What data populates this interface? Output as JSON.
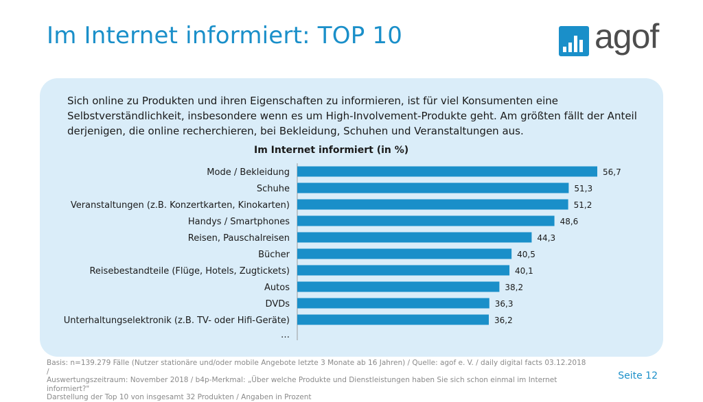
{
  "title": "Im Internet informiert: TOP 10",
  "logo": {
    "text": "agof",
    "icon": "bar-chart-logo-icon",
    "brand_color": "#1a8fc9"
  },
  "intro_text": "Sich online zu Produkten und ihren Eigenschaften zu informieren, ist für viel Konsumenten eine Selbstverständlichkeit, insbesondere wenn es um High-Involvement-Produkte geht. Am größten fällt der Anteil derjenigen, die online recherchieren, bei Bekleidung, Schuhen und Veranstaltungen aus.",
  "chart_data": {
    "type": "bar",
    "orientation": "horizontal",
    "title": "Im Internet informiert (in %)",
    "categories": [
      "Mode / Bekleidung",
      "Schuhe",
      "Veranstaltungen (z.B. Konzertkarten, Kinokarten)",
      "Handys / Smartphones",
      "Reisen, Pauschalreisen",
      "Bücher",
      "Reisebestandteile (Flüge, Hotels, Zugtickets)",
      "Autos",
      "DVDs",
      "Unterhaltungselektronik (z.B. TV- oder Hifi-Geräte)"
    ],
    "values": [
      56.7,
      51.3,
      51.2,
      48.6,
      44.3,
      40.5,
      40.1,
      38.2,
      36.3,
      36.2
    ],
    "value_labels": [
      "56,7",
      "51,3",
      "51,2",
      "48,6",
      "44,3",
      "40,5",
      "40,1",
      "38,2",
      "36,3",
      "36,2"
    ],
    "trailing_label": "…",
    "bar_color": "#1a8fc9",
    "grid": false,
    "legend": "none"
  },
  "footer": {
    "lines": [
      "Basis: n=139.279 Fälle (Nutzer stationäre und/oder mobile Angebote letzte 3 Monate ab 16 Jahren) / Quelle: agof e. V. / daily digital facts 03.12.2018 /",
      "Auswertungszeitraum: November 2018 / b4p-Merkmal: „Über welche Produkte und Dienstleistungen haben Sie sich schon einmal im Internet informiert?\"",
      "Darstellung der Top 10 von insgesamt 32 Produkten / Angaben in Prozent"
    ]
  },
  "page_label": "Seite 12"
}
